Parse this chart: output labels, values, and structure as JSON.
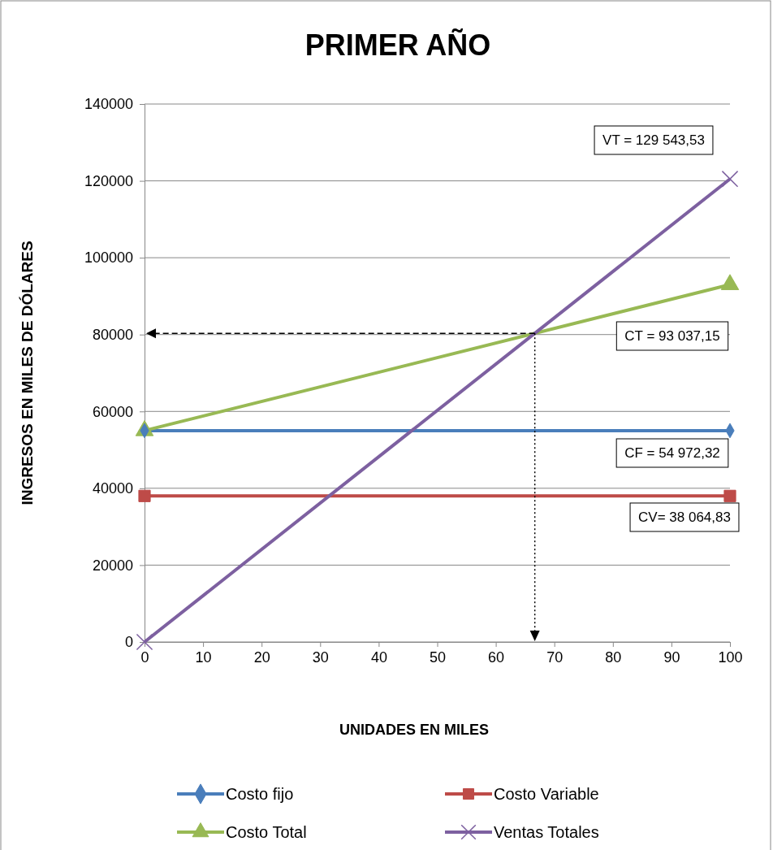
{
  "chart_data": {
    "type": "line",
    "title": "PRIMER AÑO",
    "xlabel": "UNIDADES EN MILES",
    "ylabel": "INGRESOS EN MILES DE DÓLARES",
    "x": [
      0,
      100
    ],
    "xlim": [
      0,
      100
    ],
    "xticks": [
      0,
      10,
      20,
      30,
      40,
      50,
      60,
      70,
      80,
      90,
      100
    ],
    "ylim": [
      0,
      140000
    ],
    "yticks": [
      0,
      20000,
      40000,
      60000,
      80000,
      100000,
      120000,
      140000
    ],
    "grid": "y",
    "legend": "bottom",
    "series": [
      {
        "name": "Costo fijo",
        "color": "#4a7ebb",
        "marker": "diamond",
        "values": [
          55000,
          55000
        ]
      },
      {
        "name": "Costo Variable",
        "color": "#be4b48",
        "marker": "square",
        "values": [
          38000,
          38000
        ]
      },
      {
        "name": "Costo Total",
        "color": "#98b954",
        "marker": "triangle",
        "values": [
          55000,
          93000
        ]
      },
      {
        "name": "Ventas Totales",
        "color": "#7d60a0",
        "marker": "cross",
        "values": [
          0,
          120500
        ]
      }
    ],
    "annotations": [
      "VT = 129 543,53",
      "CT = 93 037,15",
      "CF = 54 972,32",
      "CV= 38 064,83"
    ]
  }
}
